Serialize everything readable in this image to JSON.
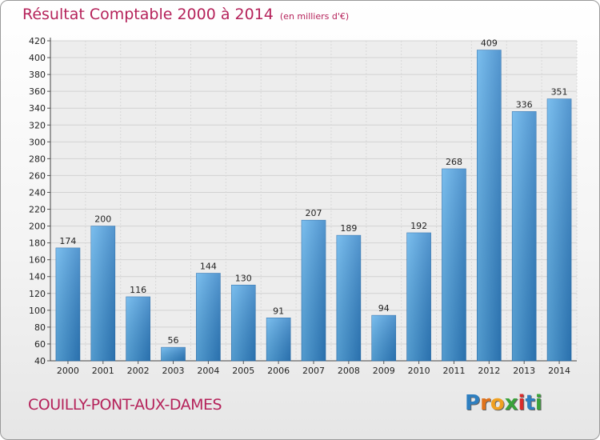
{
  "header": {
    "title": "Résultat Comptable 2000 à 2014",
    "subtitle": "(en milliers d'€)"
  },
  "footer": {
    "commune": "COUILLY-PONT-AUX-DAMES",
    "logo_letters": [
      "P",
      "r",
      "o",
      "x",
      "i",
      "t",
      "i"
    ],
    "logo_colors": [
      "#2e7fc0",
      "#e0731c",
      "#f0a020",
      "#3aa23a",
      "#d92b2b",
      "#2e7fc0",
      "#3aa23a"
    ]
  },
  "chart_data": {
    "type": "bar",
    "title": "Résultat Comptable 2000 à 2014",
    "subtitle": "(en milliers d'€)",
    "categories": [
      "2000",
      "2001",
      "2002",
      "2003",
      "2004",
      "2005",
      "2006",
      "2007",
      "2008",
      "2009",
      "2010",
      "2011",
      "2012",
      "2013",
      "2014"
    ],
    "values": [
      174,
      200,
      116,
      56,
      144,
      130,
      91,
      207,
      189,
      94,
      192,
      268,
      409,
      336,
      351
    ],
    "ylim": [
      40,
      420
    ],
    "yticks": [
      40,
      60,
      80,
      100,
      120,
      140,
      160,
      180,
      200,
      220,
      240,
      260,
      280,
      300,
      320,
      340,
      360,
      380,
      400,
      420
    ],
    "grid": true,
    "bar_color": "#3f93d8"
  }
}
